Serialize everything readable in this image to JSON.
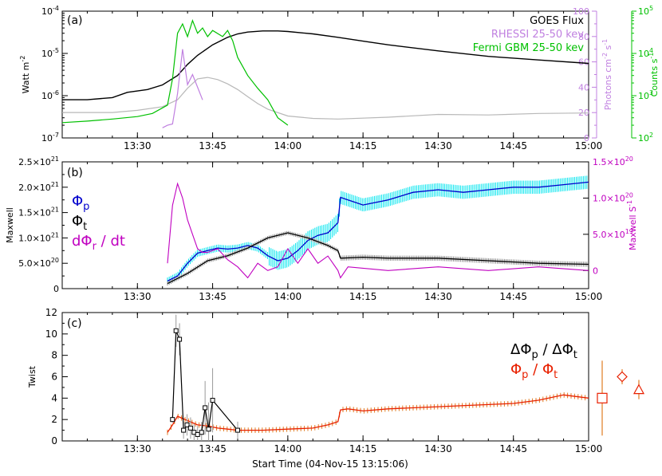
{
  "figure": {
    "xlabel": "Start Time (04-Nov-15 13:15:06)",
    "xticks": [
      "13:30",
      "13:45",
      "14:00",
      "14:15",
      "14:30",
      "14:45",
      "15:00"
    ]
  },
  "chart_data": [
    {
      "panel": "(a)",
      "type": "line",
      "xlim": [
        "13:15",
        "15:00"
      ],
      "ylabel": "Watt m",
      "ylabel_sup": "-2",
      "ylim": [
        1e-07,
        0.0001
      ],
      "yscale": "log",
      "yticks": [
        {
          "v": 0.0001,
          "b": "10",
          "e": "-4"
        },
        {
          "v": 1e-05,
          "b": "10",
          "e": "-5"
        },
        {
          "v": 1e-06,
          "b": "10",
          "e": "-6"
        },
        {
          "v": 1e-07,
          "b": "10",
          "e": "-7"
        }
      ],
      "right_axis_photons": {
        "label": "Photons cm s",
        "label_sup1": "-2",
        "label_sup2": "-1",
        "ylim": [
          0,
          100
        ],
        "ticks": [
          "0",
          "20",
          "40",
          "60",
          "80",
          "100"
        ],
        "color": "#c080e0"
      },
      "right_axis_counts": {
        "label": "Counts s",
        "label_sup": "-1",
        "ylim": [
          100,
          100000
        ],
        "yscale": "log",
        "ticks": [
          {
            "v": 100,
            "b": "10",
            "e": "2"
          },
          {
            "v": 1000,
            "b": "10",
            "e": "3"
          },
          {
            "v": 10000,
            "b": "10",
            "e": "4"
          },
          {
            "v": 100000,
            "b": "10",
            "e": "5"
          }
        ],
        "color": "#00c000"
      },
      "legend": [
        {
          "label": "GOES Flux",
          "color": "#000000"
        },
        {
          "label": "RHESSI 25-50 kev",
          "color": "#c080e0"
        },
        {
          "label": "Fermi GBM 25-50 kev",
          "color": "#00c000"
        }
      ],
      "series": [
        {
          "name": "GOES Flux",
          "color": "#000000",
          "axis": "left",
          "x": [
            "13:15",
            "13:20",
            "13:25",
            "13:28",
            "13:32",
            "13:35",
            "13:38",
            "13:40",
            "13:42",
            "13:45",
            "13:48",
            "13:50",
            "13:52",
            "13:55",
            "13:58",
            "14:00",
            "14:05",
            "14:10",
            "14:15",
            "14:20",
            "14:30",
            "14:40",
            "14:50",
            "15:00"
          ],
          "y": [
            8e-07,
            8e-07,
            9e-07,
            1.2e-06,
            1.4e-06,
            1.8e-06,
            3e-06,
            5.5e-06,
            9e-06,
            1.6e-05,
            2.4e-05,
            2.9e-05,
            3.2e-05,
            3.4e-05,
            3.4e-05,
            3.3e-05,
            2.9e-05,
            2.4e-05,
            1.95e-05,
            1.6e-05,
            1.15e-05,
            8.5e-06,
            7e-06,
            5.8e-06
          ]
        },
        {
          "name": "GOES low channel",
          "color": "#b8b8b8",
          "axis": "left",
          "x": [
            "13:15",
            "13:25",
            "13:30",
            "13:35",
            "13:38",
            "13:40",
            "13:42",
            "13:44",
            "13:46",
            "13:48",
            "13:50",
            "13:52",
            "13:54",
            "13:56",
            "14:00",
            "14:05",
            "14:10",
            "14:20",
            "14:30",
            "14:40",
            "14:50",
            "15:00"
          ],
          "y": [
            4e-07,
            4e-07,
            4.5e-07,
            5.5e-07,
            8e-07,
            1.5e-06,
            2.5e-06,
            2.7e-06,
            2.4e-06,
            1.9e-06,
            1.4e-06,
            9.5e-07,
            6.5e-07,
            4.8e-07,
            3.3e-07,
            2.9e-07,
            2.8e-07,
            3.1e-07,
            3.6e-07,
            3.5e-07,
            3.8e-07,
            3.9e-07
          ]
        },
        {
          "name": "Fermi GBM 25-50 kev",
          "color": "#00c000",
          "axis": "counts",
          "x": [
            "13:15",
            "13:20",
            "13:25",
            "13:30",
            "13:33",
            "13:36",
            "13:37",
            "13:38",
            "13:39",
            "13:40",
            "13:41",
            "13:42",
            "13:43",
            "13:44",
            "13:45",
            "13:47",
            "13:48",
            "13:49",
            "13:50",
            "13:52",
            "13:54",
            "13:56",
            "13:58",
            "14:00"
          ],
          "y": [
            230,
            250,
            280,
            320,
            380,
            600,
            2500,
            30000,
            50000,
            25000,
            60000,
            30000,
            40000,
            25000,
            35000,
            25000,
            35000,
            20000,
            8000,
            3000,
            1500,
            800,
            300,
            200
          ]
        },
        {
          "name": "RHESSI 25-50 kev",
          "color": "#c080e0",
          "axis": "photons",
          "x": [
            "13:35",
            "13:36",
            "13:37",
            "13:38",
            "13:39",
            "13:40",
            "13:41",
            "13:42",
            "13:43"
          ],
          "y": [
            8,
            10,
            11,
            35,
            70,
            42,
            50,
            40,
            30
          ]
        }
      ]
    },
    {
      "panel": "(b)",
      "type": "line",
      "xlim": [
        "13:15",
        "15:00"
      ],
      "ylabel": "Maxwell",
      "ylim": [
        0,
        2.5e+21
      ],
      "yticks": [
        {
          "v": 0,
          "m": "0",
          "e": ""
        },
        {
          "v": 5e+20,
          "m": "5.0×10",
          "e": "20"
        },
        {
          "v": 1e+21,
          "m": "1.0×10",
          "e": "21"
        },
        {
          "v": 1.5e+21,
          "m": "1.5×10",
          "e": "21"
        },
        {
          "v": 2e+21,
          "m": "2.0×10",
          "e": "21"
        },
        {
          "v": 2.5e+21,
          "m": "2.5×10",
          "e": "21"
        }
      ],
      "right_axis": {
        "label": "Maxwell S",
        "label_sup": "-1",
        "ylim": [
          -2.5e+19,
          1.5e+20
        ],
        "ticks": [
          {
            "v": 0,
            "m": "0",
            "e": ""
          },
          {
            "v": 5e+19,
            "m": "5.0×10",
            "e": "19"
          },
          {
            "v": 1e+20,
            "m": "1.0×10",
            "e": "20"
          },
          {
            "v": 1.5e+20,
            "m": "1.5×10",
            "e": "20"
          }
        ],
        "color": "#c000c0"
      },
      "labels": [
        {
          "sym": "Φ",
          "sub": "p",
          "text": "",
          "color": "#0000cc"
        },
        {
          "sym": "Φ",
          "sub": "t",
          "text": "",
          "color": "#000000"
        },
        {
          "sym": "dΦ",
          "sub": "r",
          "text": " / dt",
          "color": "#c000c0"
        }
      ],
      "series": [
        {
          "name": "Φp",
          "color": "#0000cc",
          "errcolor": "#00e5ee",
          "axis": "left",
          "x": [
            "13:36",
            "13:38",
            "13:40",
            "13:42",
            "13:44",
            "13:46",
            "13:48",
            "13:50",
            "13:52",
            "13:54",
            "13:56",
            "13:58",
            "14:00",
            "14:02",
            "14:04",
            "14:06",
            "14:08",
            "14:10",
            "14:10.5",
            "14:12",
            "14:15",
            "14:20",
            "14:25",
            "14:30",
            "14:35",
            "14:40",
            "14:45",
            "14:50",
            "14:55",
            "15:00"
          ],
          "y": [
            1.5e+20,
            2.5e+20,
            5e+20,
            7e+20,
            7.5e+20,
            8e+20,
            7.8e+20,
            8e+20,
            8.5e+20,
            8e+20,
            6.5e+20,
            5.5e+20,
            6e+20,
            7.5e+20,
            9.5e+20,
            1.05e+21,
            1.1e+21,
            1.3e+21,
            1.8e+21,
            1.75e+21,
            1.65e+21,
            1.75e+21,
            1.9e+21,
            1.95e+21,
            1.9e+21,
            1.95e+21,
            2e+21,
            2e+21,
            2.05e+21,
            2.1e+21
          ]
        },
        {
          "name": "Φt",
          "color": "#000000",
          "errcolor": "#8a8a8a",
          "axis": "left",
          "x": [
            "13:36",
            "13:40",
            "13:44",
            "13:48",
            "13:52",
            "13:56",
            "14:00",
            "14:04",
            "14:08",
            "14:10",
            "14:10.5",
            "14:15",
            "14:20",
            "14:30",
            "14:40",
            "14:50",
            "15:00"
          ],
          "y": [
            1e+20,
            3e+20,
            5.5e+20,
            6.5e+20,
            8e+20,
            1e+21,
            1.1e+21,
            1e+21,
            8.5e+20,
            7.5e+20,
            6e+20,
            6.2e+20,
            6e+20,
            6e+20,
            5.5e+20,
            5e+20,
            4.8e+20
          ]
        },
        {
          "name": "dΦr / dt",
          "color": "#c000c0",
          "axis": "right",
          "x": [
            "13:36",
            "13:37",
            "13:38",
            "13:39",
            "13:40",
            "13:41",
            "13:42",
            "13:43",
            "13:44",
            "13:46",
            "13:48",
            "13:50",
            "13:52",
            "13:54",
            "13:56",
            "13:58",
            "14:00",
            "14:02",
            "14:04",
            "14:06",
            "14:08",
            "14:10",
            "14:10.5",
            "14:12",
            "14:20",
            "14:30",
            "14:40",
            "14:50",
            "15:00"
          ],
          "y": [
            1e+19,
            9e+19,
            1.2e+20,
            1e+20,
            7e+19,
            5e+19,
            3e+19,
            2.5e+19,
            2.5e+19,
            3e+19,
            1.5e+19,
            5e+18,
            -1e+19,
            1e+19,
            0,
            5e+18,
            3e+19,
            1e+19,
            3e+19,
            1e+19,
            2e+19,
            0,
            -1e+19,
            5e+18,
            0,
            5e+18,
            0,
            5e+18,
            0
          ]
        }
      ]
    },
    {
      "panel": "(c)",
      "type": "line",
      "xlim": [
        "13:15",
        "15:00"
      ],
      "ylabel": "Twist",
      "ylim": [
        0,
        12
      ],
      "yticks": [
        "0",
        "2",
        "4",
        "6",
        "8",
        "10",
        "12"
      ],
      "labels": [
        {
          "parts": [
            {
              "s": "ΔΦ"
            },
            {
              "s": "p",
              "sub": true
            },
            {
              "s": " / ΔΦ"
            },
            {
              "s": "t",
              "sub": true
            }
          ],
          "color": "#000000"
        },
        {
          "parts": [
            {
              "s": "Φ"
            },
            {
              "s": "p",
              "sub": true
            },
            {
              "s": " / Φ"
            },
            {
              "s": "t",
              "sub": true
            }
          ],
          "color": "#e82000"
        }
      ],
      "series": [
        {
          "name": "ΔΦp / ΔΦt",
          "color": "#000000",
          "marker": "square",
          "x": [
            "13:37",
            "13:37.7",
            "13:38.4",
            "13:39.2",
            "13:39.9",
            "13:40.6",
            "13:41.3",
            "13:42",
            "13:42.8",
            "13:43.5",
            "13:44.2",
            "13:45",
            "13:50"
          ],
          "y": [
            2.0,
            10.3,
            9.5,
            1.0,
            1.5,
            1.2,
            0.8,
            0.6,
            0.8,
            3.1,
            1.1,
            3.8,
            1.0
          ],
          "err": [
            0.3,
            1.5,
            1.5,
            0.8,
            1.0,
            1.0,
            0.8,
            0.8,
            1.0,
            2.5,
            2.5,
            3.0,
            0.8
          ]
        },
        {
          "name": "Φp / Φt",
          "color": "#e82000",
          "errcolor": "#e07a20",
          "x": [
            "13:36",
            "13:37",
            "13:38",
            "13:40",
            "13:42",
            "13:44",
            "13:46",
            "13:48",
            "13:50",
            "13:55",
            "14:00",
            "14:05",
            "14:08",
            "14:10",
            "14:10.5",
            "14:12",
            "14:15",
            "14:20",
            "14:30",
            "14:40",
            "14:45",
            "14:50",
            "14:55",
            "15:00"
          ],
          "y": [
            0.8,
            1.5,
            2.3,
            1.9,
            1.5,
            1.4,
            1.2,
            1.1,
            1.0,
            1.0,
            1.1,
            1.2,
            1.5,
            1.8,
            2.9,
            3.0,
            2.8,
            3.0,
            3.2,
            3.4,
            3.5,
            3.8,
            4.3,
            4.0
          ]
        },
        {
          "name": "summary markers",
          "color": "#e82000",
          "errcolor": "#e07a20",
          "outside": true,
          "points": [
            {
              "marker": "square",
              "y": 4.0,
              "err": 3.5
            },
            {
              "marker": "diamond",
              "y": 6.0,
              "err": 0.7
            },
            {
              "marker": "triangle",
              "y": 4.8,
              "err": 0.9
            }
          ]
        }
      ]
    }
  ]
}
